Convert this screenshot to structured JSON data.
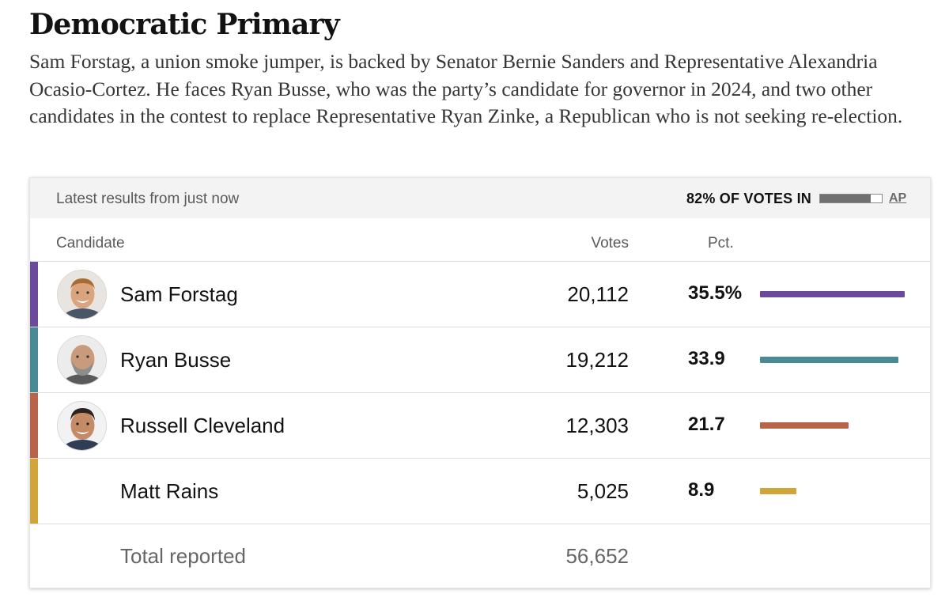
{
  "headline": "Democratic Primary",
  "dek": "Sam Forstag, a union smoke jumper, is backed by Senator Bernie Sanders and Representative Alexandria Ocasio-Cortez. He faces Ryan Busse, who was the party’s candidate for governor in 2024, and two other candidates in the contest to replace Representative Ryan Zinke, a Republican who is not seeking re-election.",
  "results": {
    "latest": "Latest results from just now",
    "votes_in": "82% OF VOTES IN",
    "votes_in_fraction": 0.82,
    "source": "AP",
    "columns": {
      "candidate": "Candidate",
      "votes": "Votes",
      "pct": "Pct."
    },
    "candidates": [
      {
        "name": "Sam Forstag",
        "votes": "20,112",
        "pct": "35.5%",
        "pct_value": 35.5,
        "color": "#6b4a9c",
        "avatar": "smiling-man-curly-hair"
      },
      {
        "name": "Ryan Busse",
        "votes": "19,212",
        "pct": "33.9",
        "pct_value": 33.9,
        "color": "#4a8a95",
        "avatar": "bald-man-grey-beard"
      },
      {
        "name": "Russell Cleveland",
        "votes": "12,303",
        "pct": "21.7",
        "pct_value": 21.7,
        "color": "#b8644a",
        "avatar": "smiling-man-dark-hair"
      },
      {
        "name": "Matt Rains",
        "votes": "5,025",
        "pct": "8.9",
        "pct_value": 8.9,
        "color": "#d2a53a",
        "avatar": null
      }
    ],
    "total_label": "Total reported",
    "total_votes": "56,652"
  }
}
